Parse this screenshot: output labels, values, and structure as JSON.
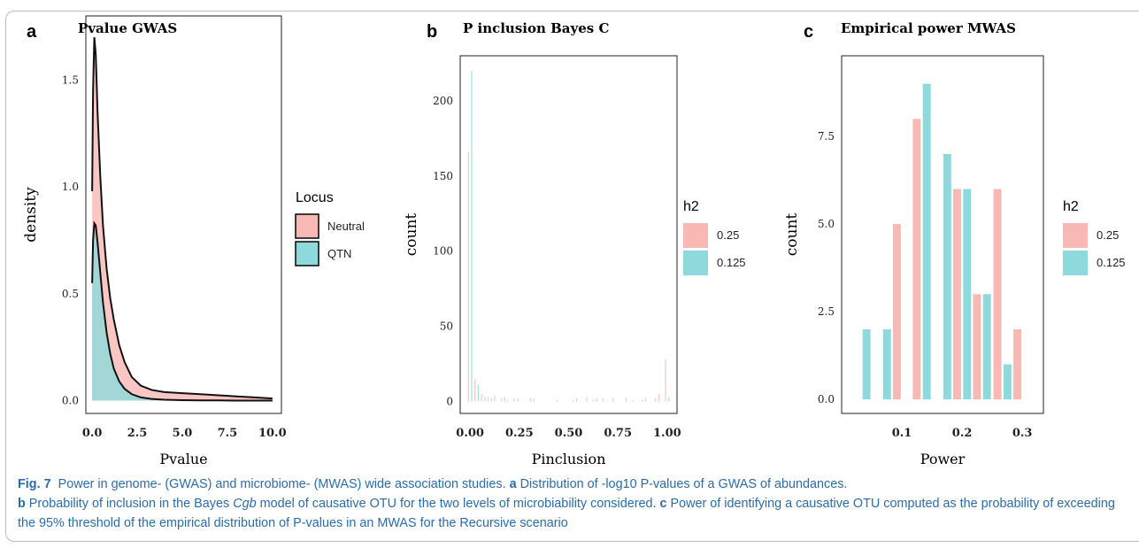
{
  "colors": {
    "neutral": "#f8b8b4",
    "qtn": "#8dd9db",
    "outline": "#111111",
    "caption": "#2b6ca8"
  },
  "caption": {
    "fig_label": "Fig. 7",
    "intro": "Power in genome- (GWAS) and microbiome- (MWAS) wide association studies.",
    "a_label": "a",
    "a_text": "Distribution of -log10 P-values of a GWAS of abundances.",
    "b_label": "b",
    "b_text_1": "Probability of inclusion in the Bayes",
    "b_text_italic": "Cgb",
    "b_text_2": "model of causative OTU for the two levels of microbiability considered.",
    "c_label": "c",
    "c_text": "Power of identifying a causative OTU computed as the probability of exceeding the 95% threshold of the empirical distribution of P-values in an MWAS for the Recursive scenario"
  },
  "chart_data": [
    {
      "panel": "a",
      "type": "area",
      "title": "Pvalue GWAS",
      "xlabel": "Pvalue",
      "ylabel": "density",
      "xlim": [
        -0.35,
        10.5
      ],
      "ylim": [
        -0.06,
        1.8
      ],
      "xticks": [
        0.0,
        2.5,
        5.0,
        7.5,
        10.0
      ],
      "xtick_labels": [
        "0.0",
        "2.5",
        "5.0",
        "7.5",
        "10.0"
      ],
      "yticks": [
        0.0,
        0.5,
        1.0,
        1.5
      ],
      "ytick_labels": [
        "0.0",
        "0.5",
        "1.0",
        "1.5"
      ],
      "legend_title": "Locus",
      "legend_position": "right",
      "series": [
        {
          "name": "Neutral",
          "color": "#f8b8b4",
          "x": [
            0.0,
            0.05,
            0.12,
            0.2,
            0.3,
            0.45,
            0.6,
            0.8,
            1.0,
            1.2,
            1.5,
            1.8,
            2.2,
            2.7,
            3.3,
            4.0,
            5.0,
            6.0,
            7.0,
            8.0,
            9.0,
            10.0
          ],
          "y": [
            0.98,
            1.45,
            1.7,
            1.62,
            1.35,
            1.05,
            0.82,
            0.62,
            0.48,
            0.38,
            0.26,
            0.18,
            0.11,
            0.07,
            0.05,
            0.04,
            0.035,
            0.03,
            0.025,
            0.02,
            0.015,
            0.01
          ]
        },
        {
          "name": "QTN",
          "color": "#8dd9db",
          "x": [
            0.0,
            0.05,
            0.12,
            0.2,
            0.3,
            0.45,
            0.6,
            0.8,
            1.0,
            1.2,
            1.5,
            1.8,
            2.2,
            2.7,
            3.3,
            4.0,
            5.0,
            6.0,
            7.0,
            8.0,
            9.0,
            10.0
          ],
          "y": [
            0.55,
            0.75,
            0.83,
            0.82,
            0.74,
            0.6,
            0.46,
            0.32,
            0.22,
            0.15,
            0.09,
            0.055,
            0.03,
            0.015,
            0.008,
            0.004,
            0.002,
            0.001,
            0.001,
            0.0,
            0.0,
            0.0
          ]
        }
      ]
    },
    {
      "panel": "b",
      "type": "bar",
      "title": "P inclusion Bayes C",
      "xlabel": "Pinclusion",
      "ylabel": "count",
      "xlim": [
        -0.05,
        1.05
      ],
      "ylim": [
        -8,
        230
      ],
      "xticks": [
        0.0,
        0.25,
        0.5,
        0.75,
        1.0
      ],
      "xtick_labels": [
        "0.00",
        "0.25",
        "0.50",
        "0.75",
        "1.00"
      ],
      "yticks": [
        0,
        50,
        100,
        150,
        200
      ],
      "ytick_labels": [
        "0",
        "50",
        "100",
        "150",
        "200"
      ],
      "legend_title": "h2",
      "legend_position": "right",
      "bin_width": 0.0333,
      "series": [
        {
          "name": "0.25",
          "color": "#f8b8b4",
          "x": [
            0.0,
            0.033,
            0.067,
            0.1,
            0.133,
            0.167,
            0.2,
            0.233,
            0.333,
            0.533,
            0.6,
            0.633,
            0.733,
            0.8,
            0.833,
            0.9,
            0.967,
            1.0
          ],
          "values": [
            166,
            15,
            5,
            3,
            4,
            2,
            1,
            2,
            2,
            1,
            3,
            1,
            2,
            2,
            1,
            2,
            5,
            28
          ]
        },
        {
          "name": "0.125",
          "color": "#8dd9db",
          "x": [
            0.0,
            0.033,
            0.067,
            0.1,
            0.167,
            0.233,
            0.3,
            0.433,
            0.533,
            0.633,
            0.667,
            0.867,
            0.933,
            1.0
          ],
          "values": [
            220,
            11,
            3,
            2,
            3,
            2,
            2,
            1,
            2,
            2,
            2,
            1,
            2,
            3
          ]
        }
      ]
    },
    {
      "panel": "c",
      "type": "bar",
      "title": "Empirical power MWAS",
      "xlabel": "Power",
      "ylabel": "count",
      "xlim": [
        0.0,
        0.335
      ],
      "ylim": [
        -0.4,
        9.8
      ],
      "xticks": [
        0.1,
        0.2,
        0.3
      ],
      "xtick_labels": [
        "0.1",
        "0.2",
        "0.3"
      ],
      "yticks": [
        0.0,
        2.5,
        5.0,
        7.5
      ],
      "ytick_labels": [
        "0.0",
        "2.5",
        "5.0",
        "7.5"
      ],
      "legend_title": "h2",
      "legend_position": "right",
      "bin_width": 0.0333,
      "series": [
        {
          "name": "0.25",
          "color": "#f8b8b4",
          "x": [
            0.033,
            0.067,
            0.1,
            0.133,
            0.167,
            0.2,
            0.233,
            0.267,
            0.3
          ],
          "values": [
            0,
            0,
            5,
            8,
            0,
            6,
            3,
            6,
            2
          ]
        },
        {
          "name": "0.125",
          "color": "#8dd9db",
          "x": [
            0.033,
            0.067,
            0.1,
            0.133,
            0.167,
            0.2,
            0.233,
            0.267,
            0.3
          ],
          "values": [
            2,
            2,
            0,
            9,
            7,
            6,
            3,
            1,
            0
          ]
        }
      ]
    }
  ]
}
